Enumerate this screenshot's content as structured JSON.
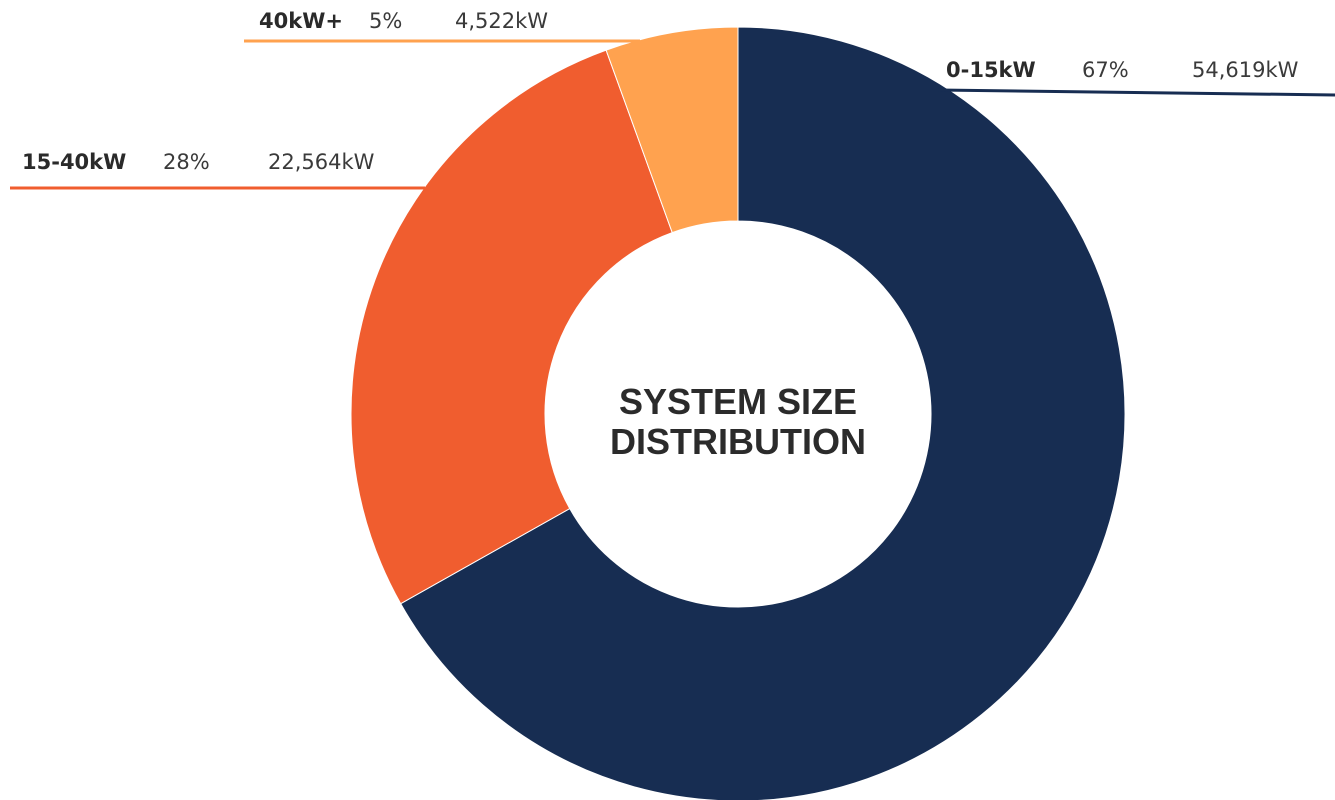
{
  "chart_data": {
    "type": "pie",
    "variant": "donut",
    "title": "SYSTEM SIZE DISTRIBUTION",
    "title_lines": [
      "SYSTEM SIZE",
      "DISTRIBUTION"
    ],
    "unit": "kW",
    "slices": [
      {
        "name": "0-15kW",
        "percent": 67,
        "value": 54619,
        "percent_label": "67%",
        "value_label": "54,619kW",
        "color": "#172d52"
      },
      {
        "name": "15-40kW",
        "percent": 28,
        "value": 22564,
        "percent_label": "28%",
        "value_label": "22,564kW",
        "color": "#f05d2f"
      },
      {
        "name": "40kW+",
        "percent": 5,
        "value": 4522,
        "percent_label": "5%",
        "value_label": "4,522kW",
        "color": "#ffa24f"
      }
    ],
    "legend": "outside-labels",
    "grid": false
  }
}
